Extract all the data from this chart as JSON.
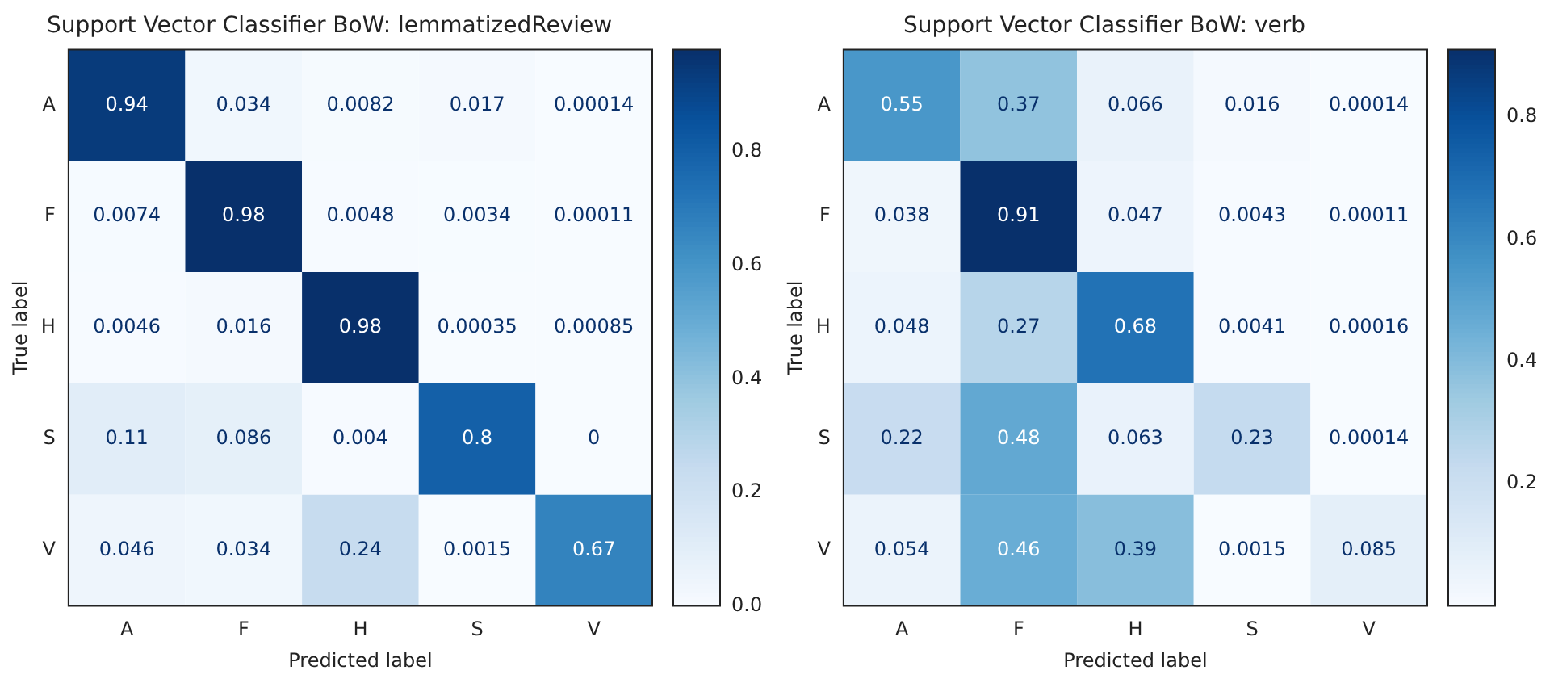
{
  "chart_data": [
    {
      "type": "heatmap",
      "title": "Support Vector Classifier BoW: lemmatizedReview",
      "xlabel": "Predicted label",
      "ylabel": "True label",
      "categories": [
        "A",
        "F",
        "H",
        "S",
        "V"
      ],
      "y_categories": [
        "A",
        "F",
        "H",
        "S",
        "V"
      ],
      "cells": [
        [
          0.94,
          0.034,
          0.0082,
          0.017,
          0.00014
        ],
        [
          0.0074,
          0.98,
          0.0048,
          0.0034,
          0.00011
        ],
        [
          0.0046,
          0.016,
          0.98,
          0.00035,
          0.00085
        ],
        [
          0.11,
          0.086,
          0.004,
          0.8,
          0
        ],
        [
          0.046,
          0.034,
          0.24,
          0.0015,
          0.67
        ]
      ],
      "data_labels": true,
      "clim": [
        0,
        0.98
      ],
      "cticks": [
        {
          "value": 0,
          "label": "0.0"
        },
        {
          "value": 0.2,
          "label": "0.2"
        },
        {
          "value": 0.4,
          "label": "0.4"
        },
        {
          "value": 0.6,
          "label": "0.6"
        },
        {
          "value": 0.8,
          "label": "0.8"
        }
      ]
    },
    {
      "type": "heatmap",
      "title": "Support Vector Classifier BoW: verb",
      "xlabel": "Predicted label",
      "ylabel": "True label",
      "categories": [
        "A",
        "F",
        "H",
        "S",
        "V"
      ],
      "y_categories": [
        "A",
        "F",
        "H",
        "S",
        "V"
      ],
      "cells": [
        [
          0.55,
          0.37,
          0.066,
          0.016,
          0.00014
        ],
        [
          0.038,
          0.91,
          0.047,
          0.0043,
          0.00011
        ],
        [
          0.048,
          0.27,
          0.68,
          0.0041,
          0.00016
        ],
        [
          0.22,
          0.48,
          0.063,
          0.23,
          0.00014
        ],
        [
          0.054,
          0.46,
          0.39,
          0.0015,
          0.085
        ]
      ],
      "data_labels": true,
      "clim": [
        0.00011,
        0.91
      ],
      "cticks": [
        0.2,
        0.4,
        0.6,
        0.8
      ]
    }
  ]
}
